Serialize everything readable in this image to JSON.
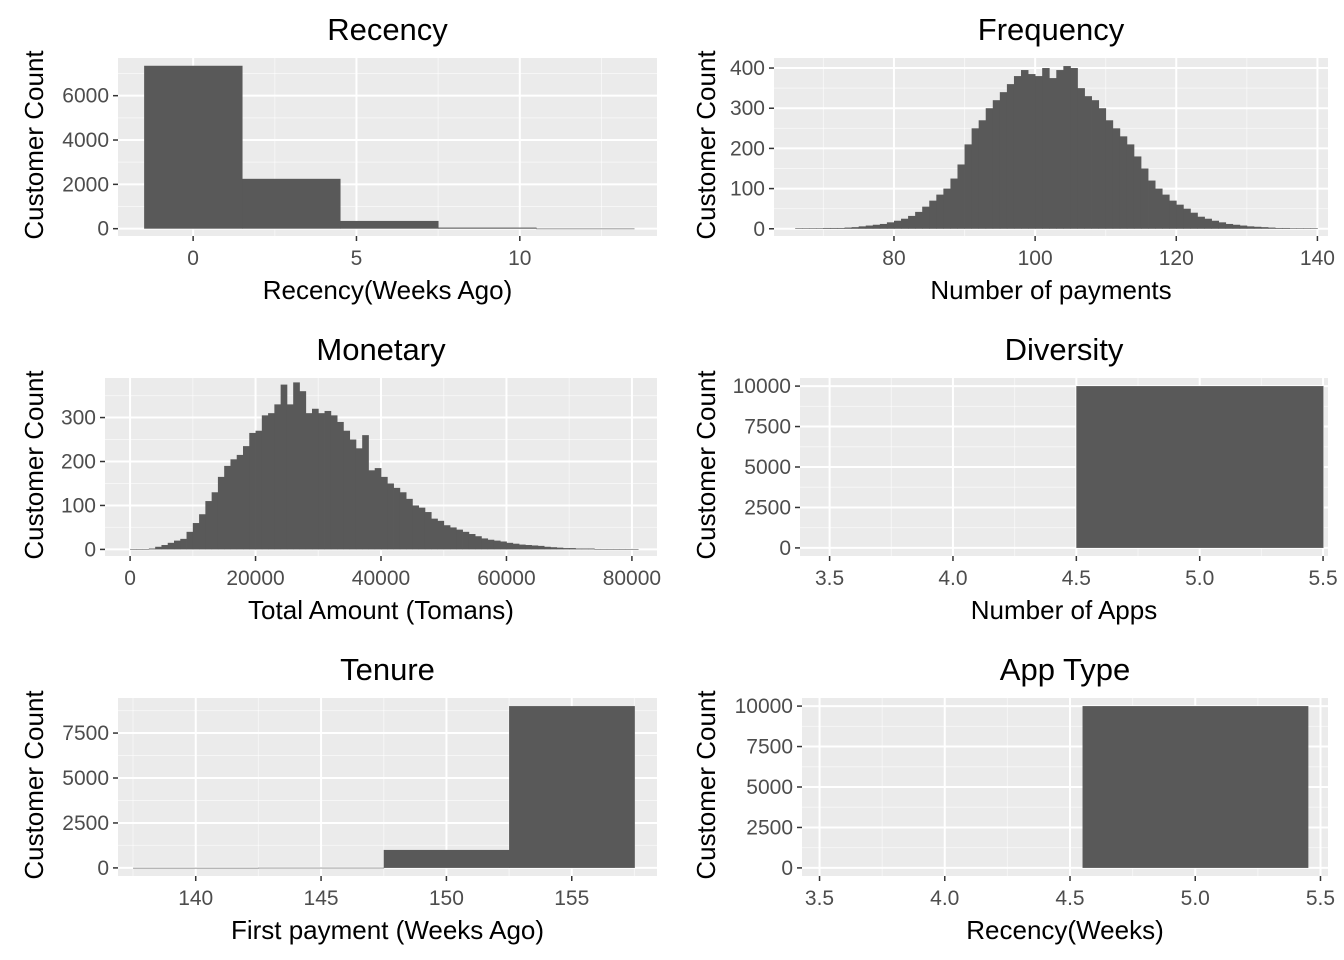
{
  "colors": {
    "panel_background": "#ebebeb",
    "grid_major": "#ffffff",
    "bar_fill": "#595959",
    "tick_color": "#333333",
    "tick_label_color": "#4d4d4d"
  },
  "chart_data": [
    {
      "type": "bar",
      "title": "Recency",
      "xlabel": "Recency(Weeks Ago)",
      "ylabel": "Customer Count",
      "xlim": [
        -2.3,
        14.2
      ],
      "ylim": [
        -330,
        7700
      ],
      "x_ticks": [
        0,
        5,
        10
      ],
      "y_ticks": [
        0,
        2000,
        4000,
        6000
      ],
      "grid": true,
      "bins": [
        [
          -1.5,
          1.5,
          7350
        ],
        [
          1.5,
          4.5,
          2250
        ],
        [
          4.5,
          7.5,
          350
        ],
        [
          7.5,
          10.5,
          50
        ],
        [
          10.5,
          13.5,
          5
        ]
      ]
    },
    {
      "type": "bar",
      "title": "Frequency",
      "xlabel": "Number of payments",
      "ylabel": "Customer Count",
      "xlim": [
        63,
        141.5
      ],
      "ylim": [
        -18,
        425
      ],
      "x_ticks": [
        80,
        100,
        120,
        140
      ],
      "y_ticks": [
        0,
        100,
        200,
        300,
        400
      ],
      "grid": true,
      "bin_start": 66,
      "bin_width": 1,
      "values": [
        1,
        1,
        1,
        1,
        2,
        2,
        2,
        3,
        4,
        6,
        8,
        10,
        12,
        16,
        20,
        25,
        32,
        42,
        55,
        70,
        85,
        100,
        125,
        160,
        210,
        250,
        270,
        300,
        320,
        340,
        360,
        380,
        395,
        385,
        380,
        400,
        375,
        395,
        405,
        400,
        350,
        330,
        320,
        300,
        270,
        250,
        230,
        210,
        180,
        150,
        120,
        100,
        85,
        70,
        60,
        50,
        40,
        30,
        25,
        20,
        16,
        12,
        10,
        8,
        6,
        5,
        4,
        3,
        2,
        2,
        1,
        1,
        1,
        1
      ]
    },
    {
      "type": "bar",
      "title": "Monetary",
      "xlabel": "Total Amount (Tomans)",
      "ylabel": "Customer Count",
      "xlim": [
        -4000,
        84000
      ],
      "ylim": [
        -15,
        390
      ],
      "x_ticks": [
        0,
        20000,
        40000,
        60000,
        80000
      ],
      "y_ticks": [
        0,
        100,
        200,
        300
      ],
      "grid": true,
      "bin_start": 0,
      "bin_width": 1000,
      "values": [
        1,
        1,
        1,
        2,
        6,
        10,
        15,
        20,
        24,
        40,
        60,
        80,
        110,
        130,
        165,
        190,
        205,
        215,
        235,
        265,
        270,
        305,
        310,
        330,
        375,
        330,
        380,
        360,
        310,
        320,
        310,
        315,
        305,
        290,
        270,
        250,
        230,
        260,
        180,
        185,
        165,
        150,
        140,
        130,
        115,
        100,
        95,
        85,
        70,
        65,
        55,
        50,
        45,
        40,
        35,
        30,
        25,
        22,
        20,
        18,
        15,
        13,
        11,
        10,
        9,
        8,
        6,
        5,
        4,
        3,
        3,
        2,
        2,
        2,
        1,
        1,
        1,
        1,
        1,
        1,
        1
      ]
    },
    {
      "type": "bar",
      "title": "Diversity",
      "xlabel": "Number of Apps",
      "ylabel": "Customer Count",
      "xlim": [
        3.38,
        5.52
      ],
      "ylim": [
        -500,
        10500
      ],
      "x_ticks": [
        3.5,
        4.0,
        4.5,
        5.0,
        5.5
      ],
      "x_tick_labels": [
        "3.5",
        "4.0",
        "4.5",
        "5.0",
        "5.5"
      ],
      "y_ticks": [
        0,
        2500,
        5000,
        7500,
        10000
      ],
      "grid": true,
      "bins": [
        [
          3.5,
          4.5,
          0
        ],
        [
          4.5,
          5.5,
          10000
        ]
      ]
    },
    {
      "type": "bar",
      "title": "Tenure",
      "xlabel": "First payment (Weeks Ago)",
      "ylabel": "Customer Count",
      "xlim": [
        136.9,
        158.4
      ],
      "ylim": [
        -450,
        9450
      ],
      "x_ticks": [
        140,
        145,
        150,
        155
      ],
      "y_ticks": [
        0,
        2500,
        5000,
        7500
      ],
      "grid": true,
      "bins": [
        [
          137.5,
          142.5,
          5
        ],
        [
          142.5,
          147.5,
          10
        ],
        [
          147.5,
          152.5,
          1000
        ],
        [
          152.5,
          157.5,
          9000
        ]
      ]
    },
    {
      "type": "bar",
      "title": "App Type",
      "xlabel": "Recency(Weeks)",
      "ylabel": "Customer Count",
      "xlim": [
        3.43,
        5.53
      ],
      "ylim": [
        -500,
        10500
      ],
      "x_ticks": [
        3.5,
        4.0,
        4.5,
        5.0,
        5.5
      ],
      "x_tick_labels": [
        "3.5",
        "4.0",
        "4.5",
        "5.0",
        "5.5"
      ],
      "y_ticks": [
        0,
        2500,
        5000,
        7500,
        10000
      ],
      "grid": true,
      "bins": [
        [
          3.55,
          4.55,
          0
        ],
        [
          4.55,
          5.45,
          10000
        ]
      ]
    }
  ]
}
